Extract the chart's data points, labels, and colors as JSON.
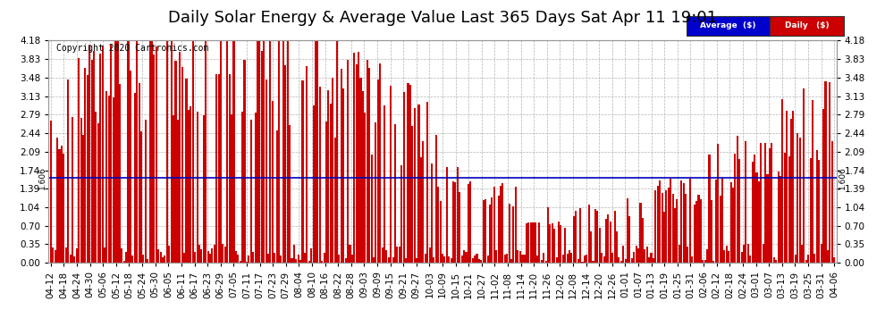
{
  "title": "Daily Solar Energy & Average Value Last 365 Days Sat Apr 11 19:01",
  "copyright": "Copyright 2020 Cartronics.com",
  "average_value": 1.606,
  "average_label": "1.606",
  "bar_color": "#cc0000",
  "average_color": "#0000bb",
  "background_color": "#ffffff",
  "ylim": [
    0.0,
    4.18
  ],
  "yticks": [
    0.0,
    0.35,
    0.7,
    1.04,
    1.39,
    1.74,
    2.09,
    2.44,
    2.79,
    3.13,
    3.48,
    3.83,
    4.18
  ],
  "legend_avg_color": "#0000cc",
  "legend_daily_color": "#cc0000",
  "legend_avg_text": "Average  ($)",
  "legend_daily_text": "Daily   ($)",
  "grid_color": "#aaaaaa",
  "title_fontsize": 13,
  "tick_label_fontsize": 7.5,
  "x_labels": [
    "04-12",
    "04-18",
    "04-24",
    "04-30",
    "05-06",
    "05-12",
    "05-18",
    "05-24",
    "05-30",
    "06-05",
    "06-11",
    "06-17",
    "06-23",
    "06-29",
    "07-05",
    "07-11",
    "07-17",
    "07-23",
    "07-29",
    "08-04",
    "08-10",
    "08-16",
    "08-22",
    "08-28",
    "09-03",
    "09-09",
    "09-15",
    "09-21",
    "09-27",
    "10-03",
    "10-09",
    "10-15",
    "10-21",
    "10-27",
    "11-02",
    "11-08",
    "11-14",
    "11-20",
    "11-26",
    "12-02",
    "12-08",
    "12-14",
    "12-20",
    "12-26",
    "01-01",
    "01-07",
    "01-13",
    "01-19",
    "01-25",
    "01-31",
    "02-06",
    "02-12",
    "02-18",
    "02-24",
    "03-01",
    "03-07",
    "03-13",
    "03-19",
    "03-25",
    "03-31",
    "04-06"
  ],
  "n_days": 365,
  "seed": 77,
  "avg_seed": 99
}
